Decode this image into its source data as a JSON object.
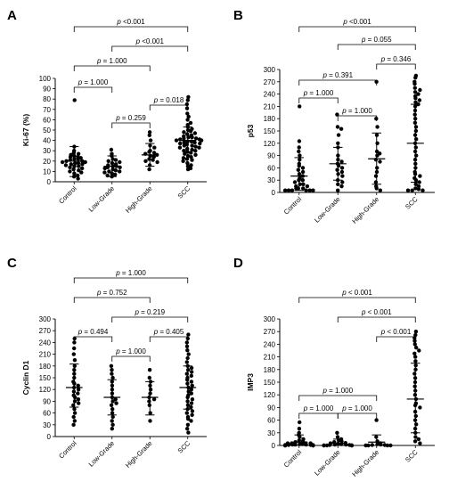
{
  "chart_data": [
    {
      "panel": "A",
      "type": "scatter",
      "ylabel": "Ki-67 (%)",
      "ylim": [
        0,
        100
      ],
      "yticks": [
        0,
        10,
        20,
        30,
        40,
        50,
        60,
        70,
        80,
        90,
        100
      ],
      "categories": [
        "Control",
        "Low-Grade",
        "High-Grade",
        "SCC"
      ],
      "groups": [
        {
          "name": "Control",
          "mean": 20,
          "sd_low": 5,
          "sd_high": 34,
          "values": [
            79,
            34,
            30,
            28,
            27,
            26,
            25,
            24,
            24,
            23,
            22,
            22,
            21,
            20,
            20,
            19,
            19,
            18,
            18,
            17,
            17,
            16,
            15,
            15,
            14,
            13,
            12,
            11,
            10,
            9,
            8,
            6,
            5,
            3
          ]
        },
        {
          "name": "Low-Grade",
          "mean": 15,
          "sd_low": 5,
          "sd_high": 25,
          "values": [
            31,
            27,
            25,
            22,
            21,
            20,
            19,
            18,
            17,
            16,
            15,
            15,
            14,
            14,
            13,
            12,
            11,
            10,
            10,
            9,
            8,
            7,
            6,
            5
          ]
        },
        {
          "name": "High-Grade",
          "mean": 26,
          "sd_low": 15,
          "sd_high": 37,
          "values": [
            48,
            45,
            40,
            35,
            33,
            30,
            29,
            28,
            27,
            26,
            25,
            24,
            22,
            21,
            20,
            19,
            16,
            12
          ]
        },
        {
          "name": "SCC",
          "mean": 40,
          "sd_low": 28,
          "sd_high": 53,
          "values": [
            82,
            79,
            75,
            71,
            66,
            63,
            60,
            57,
            55,
            53,
            51,
            50,
            49,
            48,
            47,
            46,
            45,
            44,
            43,
            43,
            42,
            42,
            41,
            41,
            40,
            40,
            39,
            39,
            38,
            38,
            37,
            37,
            36,
            35,
            35,
            34,
            33,
            33,
            32,
            31,
            30,
            30,
            29,
            28,
            27,
            26,
            25,
            24,
            23,
            22,
            21,
            20,
            18,
            16,
            15,
            13,
            12
          ]
        }
      ],
      "comparisons": [
        {
          "from": "Control",
          "to": "SCC",
          "label": "p <0.001"
        },
        {
          "from": "Low-Grade",
          "to": "SCC",
          "label": "p <0.001"
        },
        {
          "from": "Control",
          "to": "High-Grade",
          "label": "p = 1.000"
        },
        {
          "from": "Control",
          "to": "Low-Grade",
          "label": "p = 1.000"
        },
        {
          "from": "High-Grade",
          "to": "SCC",
          "label": "p = 0.018"
        },
        {
          "from": "Low-Grade",
          "to": "High-Grade",
          "label": "p = 0.259"
        }
      ]
    },
    {
      "panel": "B",
      "type": "scatter",
      "ylabel": "p53",
      "ylim": [
        0,
        300
      ],
      "yticks": [
        0,
        30,
        60,
        90,
        120,
        150,
        180,
        210,
        240,
        270,
        300
      ],
      "categories": [
        "Control",
        "Low-Grade",
        "High-Grade",
        "SCC"
      ],
      "groups": [
        {
          "name": "Control",
          "mean": 40,
          "sd_low": 5,
          "sd_high": 85,
          "values": [
            210,
            125,
            110,
            100,
            90,
            80,
            70,
            65,
            60,
            55,
            50,
            45,
            40,
            35,
            30,
            30,
            25,
            20,
            20,
            15,
            15,
            10,
            10,
            10,
            5,
            5,
            5,
            5,
            5,
            5
          ]
        },
        {
          "name": "Low-Grade",
          "mean": 70,
          "sd_low": 30,
          "sd_high": 110,
          "values": [
            190,
            160,
            155,
            140,
            120,
            110,
            90,
            80,
            75,
            70,
            65,
            60,
            55,
            50,
            45,
            40,
            30,
            25,
            20,
            15,
            5
          ]
        },
        {
          "name": "High-Grade",
          "mean": 82,
          "sd_low": 20,
          "sd_high": 145,
          "values": [
            270,
            180,
            160,
            140,
            120,
            100,
            95,
            90,
            80,
            75,
            60,
            50,
            40,
            25,
            15,
            10,
            5
          ]
        },
        {
          "name": "SCC",
          "mean": 120,
          "sd_low": 25,
          "sd_high": 215,
          "values": [
            285,
            280,
            270,
            265,
            255,
            250,
            245,
            240,
            235,
            230,
            225,
            220,
            215,
            210,
            200,
            190,
            180,
            170,
            160,
            150,
            140,
            130,
            120,
            110,
            100,
            90,
            80,
            70,
            60,
            50,
            45,
            40,
            35,
            30,
            25,
            20,
            15,
            10,
            8,
            5,
            5,
            5
          ]
        }
      ],
      "comparisons": [
        {
          "from": "Control",
          "to": "SCC",
          "label": "p <0.001"
        },
        {
          "from": "Low-Grade",
          "to": "SCC",
          "label": "p = 0.055"
        },
        {
          "from": "Control",
          "to": "High-Grade",
          "label": "p = 0.391"
        },
        {
          "from": "High-Grade",
          "to": "SCC",
          "label": "p = 0.346"
        },
        {
          "from": "Control",
          "to": "Low-Grade",
          "label": "p = 1.000"
        },
        {
          "from": "Low-Grade",
          "to": "High-Grade",
          "label": "p = 1.000"
        }
      ]
    },
    {
      "panel": "C",
      "type": "scatter",
      "ylabel": "Cyclin D1",
      "ylim": [
        0,
        300
      ],
      "yticks": [
        0,
        30,
        60,
        90,
        120,
        150,
        180,
        210,
        240,
        270,
        300
      ],
      "categories": [
        "Control",
        "Low-Grade",
        "High-Grade",
        "SCC"
      ],
      "groups": [
        {
          "name": "Control",
          "mean": 125,
          "sd_low": 75,
          "sd_high": 185,
          "values": [
            250,
            240,
            225,
            210,
            195,
            180,
            170,
            160,
            150,
            140,
            135,
            130,
            125,
            120,
            115,
            110,
            105,
            100,
            95,
            90,
            85,
            80,
            70,
            60,
            50,
            40,
            30
          ]
        },
        {
          "name": "Low-Grade",
          "mean": 100,
          "sd_low": 55,
          "sd_high": 145,
          "values": [
            180,
            170,
            160,
            150,
            140,
            130,
            120,
            110,
            100,
            95,
            90,
            85,
            80,
            70,
            60,
            50,
            40,
            30,
            20
          ]
        },
        {
          "name": "High-Grade",
          "mean": 100,
          "sd_low": 55,
          "sd_high": 140,
          "values": [
            170,
            150,
            140,
            130,
            120,
            110,
            100,
            95,
            90,
            80,
            60,
            40
          ]
        },
        {
          "name": "SCC",
          "mean": 125,
          "sd_low": 70,
          "sd_high": 180,
          "values": [
            260,
            250,
            240,
            230,
            220,
            210,
            200,
            190,
            180,
            175,
            170,
            165,
            160,
            155,
            150,
            145,
            140,
            135,
            130,
            125,
            120,
            115,
            110,
            105,
            100,
            95,
            90,
            85,
            80,
            75,
            70,
            65,
            60,
            55,
            50,
            45,
            40,
            30,
            20,
            10
          ]
        }
      ],
      "comparisons": [
        {
          "from": "Control",
          "to": "SCC",
          "label": "p = 1.000"
        },
        {
          "from": "Control",
          "to": "High-Grade",
          "label": "p = 0.752"
        },
        {
          "from": "Low-Grade",
          "to": "SCC",
          "label": "p = 0.219"
        },
        {
          "from": "Control",
          "to": "Low-Grade",
          "label": "p = 0.494"
        },
        {
          "from": "High-Grade",
          "to": "SCC",
          "label": "p = 0.405"
        },
        {
          "from": "Low-Grade",
          "to": "High-Grade",
          "label": "p = 1.000"
        }
      ]
    },
    {
      "panel": "D",
      "type": "scatter",
      "ylabel": "IMP3",
      "ylim": [
        0,
        300
      ],
      "yticks": [
        0,
        30,
        60,
        90,
        120,
        150,
        180,
        210,
        240,
        270,
        300
      ],
      "categories": [
        "Control",
        "Low-Grade",
        "High-Grade",
        "SCC"
      ],
      "groups": [
        {
          "name": "Control",
          "mean": 8,
          "sd_low": 0,
          "sd_high": 25,
          "values": [
            55,
            40,
            30,
            25,
            20,
            15,
            12,
            10,
            8,
            5,
            5,
            5,
            5,
            3,
            3,
            2,
            2,
            2,
            1,
            1,
            1,
            1,
            0,
            0,
            0,
            0,
            0,
            0
          ]
        },
        {
          "name": "Low-Grade",
          "mean": 5,
          "sd_low": 0,
          "sd_high": 15,
          "values": [
            30,
            20,
            15,
            12,
            10,
            8,
            6,
            5,
            4,
            3,
            2,
            2,
            1,
            1,
            0,
            0,
            0,
            0,
            0,
            0
          ]
        },
        {
          "name": "High-Grade",
          "mean": 8,
          "sd_low": 0,
          "sd_high": 25,
          "values": [
            60,
            20,
            10,
            5,
            3,
            2,
            1,
            1,
            0,
            0,
            0,
            0
          ]
        },
        {
          "name": "SCC",
          "mean": 110,
          "sd_low": 30,
          "sd_high": 195,
          "values": [
            270,
            262,
            255,
            248,
            240,
            232,
            225,
            218,
            210,
            200,
            190,
            180,
            170,
            160,
            150,
            140,
            130,
            120,
            110,
            100,
            95,
            90,
            80,
            70,
            60,
            50,
            40,
            30,
            20,
            15,
            10,
            5
          ]
        }
      ],
      "comparisons": [
        {
          "from": "Control",
          "to": "SCC",
          "label": "p < 0.001"
        },
        {
          "from": "Low-Grade",
          "to": "SCC",
          "label": "p < 0.001"
        },
        {
          "from": "High-Grade",
          "to": "SCC",
          "label": "p < 0.001"
        },
        {
          "from": "Control",
          "to": "High-Grade",
          "label": "p = 1.000"
        },
        {
          "from": "Control",
          "to": "Low-Grade",
          "label": "p = 1.000"
        },
        {
          "from": "Low-Grade",
          "to": "High-Grade",
          "label": "p = 1.000"
        }
      ]
    }
  ],
  "colors": {
    "ink": "#000000",
    "background": "#ffffff"
  }
}
